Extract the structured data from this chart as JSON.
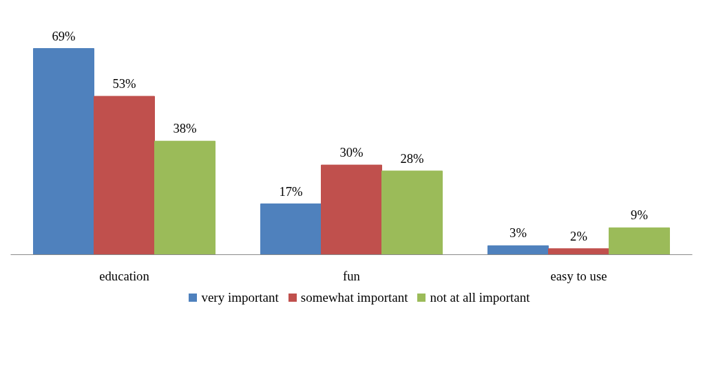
{
  "chart_data": {
    "type": "bar",
    "categories": [
      "education",
      "fun",
      "easy to use"
    ],
    "series": [
      {
        "name": "very important",
        "color": "#4f81bd",
        "values": [
          69,
          17,
          3
        ],
        "value_labels": [
          "69%",
          "17%",
          "3%"
        ]
      },
      {
        "name": "somewhat important",
        "color": "#c0504d",
        "values": [
          53,
          30,
          2
        ],
        "value_labels": [
          "53%",
          "30%",
          "2%"
        ]
      },
      {
        "name": "not at all important",
        "color": "#9bbb59",
        "values": [
          38,
          28,
          9
        ],
        "value_labels": [
          "38%",
          "28%",
          "9%"
        ]
      }
    ],
    "legend": "bottom"
  }
}
